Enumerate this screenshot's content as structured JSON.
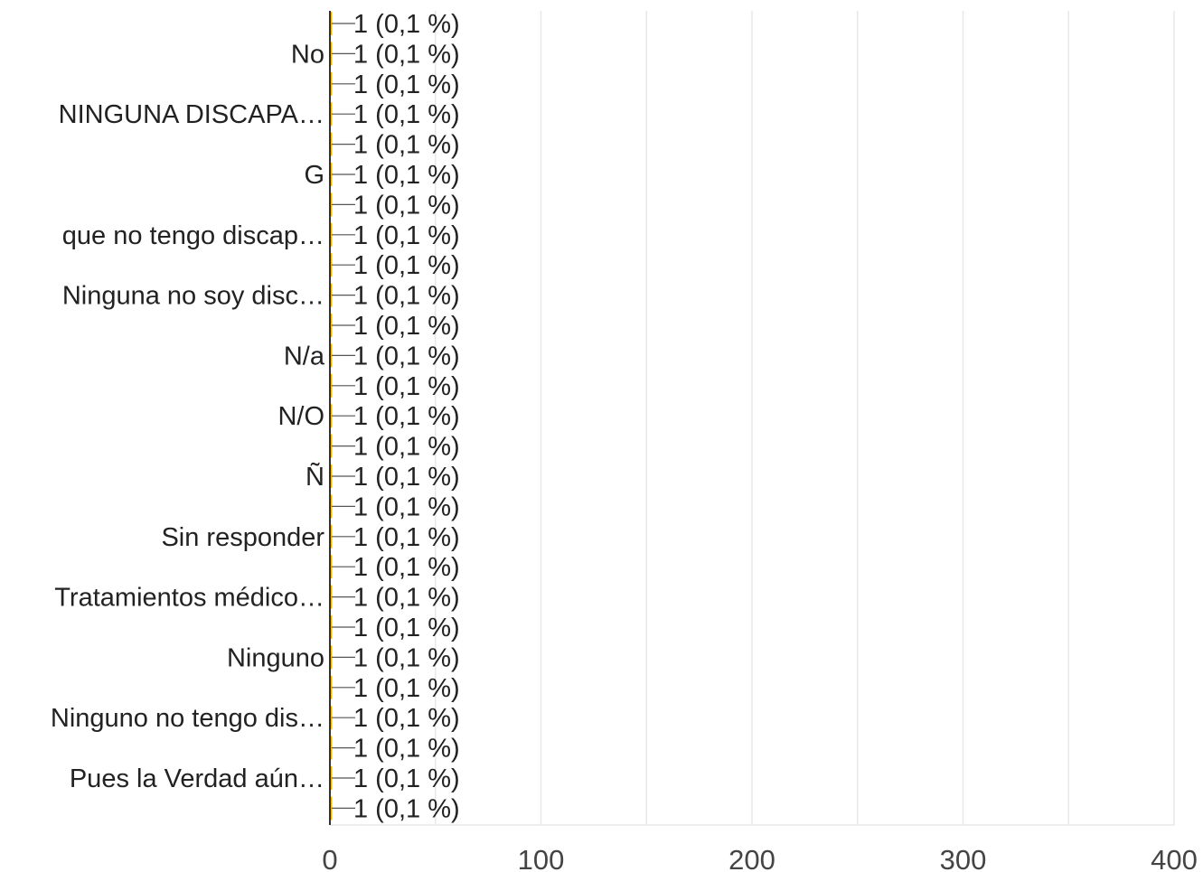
{
  "chart_data": {
    "type": "bar",
    "orientation": "horizontal",
    "categories": [
      "",
      "No",
      "",
      "NINGUNA DISCAPA…",
      "",
      "G",
      "",
      "que no tengo discap…",
      "",
      "Ninguna no soy disc…",
      "",
      "N/a",
      "",
      "N/O",
      "",
      "Ñ",
      "",
      "Sin responder",
      "",
      "Tratamientos médico…",
      "",
      "Ninguno",
      "",
      "Ninguno no tengo dis…",
      "",
      "Pues la Verdad aún…",
      ""
    ],
    "values": [
      1,
      1,
      1,
      1,
      1,
      1,
      1,
      1,
      1,
      1,
      1,
      1,
      1,
      1,
      1,
      1,
      1,
      1,
      1,
      1,
      1,
      1,
      1,
      1,
      1,
      1,
      1
    ],
    "data_labels": [
      "1 (0,1 %)",
      "1 (0,1 %)",
      "1 (0,1 %)",
      "1 (0,1 %)",
      "1 (0,1 %)",
      "1 (0,1 %)",
      "1 (0,1 %)",
      "1 (0,1 %)",
      "1 (0,1 %)",
      "1 (0,1 %)",
      "1 (0,1 %)",
      "1 (0,1 %)",
      "1 (0,1 %)",
      "1 (0,1 %)",
      "1 (0,1 %)",
      "1 (0,1 %)",
      "1 (0,1 %)",
      "1 (0,1 %)",
      "1 (0,1 %)",
      "1 (0,1 %)",
      "1 (0,1 %)",
      "1 (0,1 %)",
      "1 (0,1 %)",
      "1 (0,1 %)",
      "1 (0,1 %)",
      "1 (0,1 %)",
      "1 (0,1 %)"
    ],
    "x_ticks": [
      "0",
      "100",
      "200",
      "300",
      "400"
    ],
    "xlim": [
      0,
      400
    ],
    "grid": true,
    "colors": {
      "bar": "#f6b200",
      "axis": "#333333",
      "grid": "#e8e8e8",
      "leader": "#555555"
    }
  }
}
